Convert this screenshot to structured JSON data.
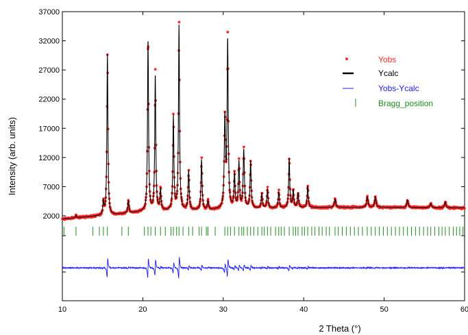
{
  "chart_data": {
    "type": "line",
    "title": "",
    "xlabel": "2 Theta (°)",
    "ylabel": "Intensity (arb. units)",
    "xlim": [
      10,
      60
    ],
    "ylim_top_panel": [
      0,
      37000
    ],
    "x_ticks": [
      "10",
      "20",
      "30",
      "40",
      "50",
      "60"
    ],
    "y_ticks": [
      "2000",
      "7000",
      "12000",
      "17000",
      "22000",
      "27000",
      "32000",
      "37000"
    ],
    "y_tick_values": [
      2000,
      7000,
      12000,
      17000,
      22000,
      27000,
      32000,
      37000
    ],
    "legend_position": "top-right",
    "series": [
      {
        "name": "Yobs",
        "style": "points",
        "color": "#ff2a2a"
      },
      {
        "name": "Ycalc",
        "style": "line",
        "color": "#000000"
      },
      {
        "name": "Yobs-Ycalc",
        "style": "line",
        "color": "#1a1aff"
      },
      {
        "name": "Bragg_position",
        "style": "ticks",
        "color": "#1e8c1e"
      }
    ],
    "background": {
      "points": [
        [
          10,
          1450
        ],
        [
          12,
          1700
        ],
        [
          14,
          1900
        ],
        [
          16,
          2100
        ],
        [
          20,
          2700
        ],
        [
          24,
          2900
        ],
        [
          28,
          3000
        ],
        [
          32,
          3200
        ],
        [
          36,
          3300
        ],
        [
          40,
          3400
        ],
        [
          45,
          3450
        ],
        [
          50,
          3450
        ],
        [
          55,
          3400
        ],
        [
          60,
          3350
        ]
      ]
    },
    "peaks": [
      {
        "x": 11.7,
        "y": 400,
        "w": 0.07
      },
      {
        "x": 15.1,
        "y": 2200,
        "w": 0.08
      },
      {
        "x": 15.6,
        "y": 27600,
        "w": 0.075
      },
      {
        "x": 18.2,
        "y": 2200,
        "w": 0.08
      },
      {
        "x": 20.65,
        "y": 29400,
        "w": 0.075
      },
      {
        "x": 21.55,
        "y": 23300,
        "w": 0.075
      },
      {
        "x": 22.2,
        "y": 3600,
        "w": 0.08
      },
      {
        "x": 23.8,
        "y": 16000,
        "w": 0.075
      },
      {
        "x": 24.5,
        "y": 31600,
        "w": 0.075
      },
      {
        "x": 25.7,
        "y": 6700,
        "w": 0.08
      },
      {
        "x": 27.3,
        "y": 8600,
        "w": 0.08
      },
      {
        "x": 28.1,
        "y": 1500,
        "w": 0.08
      },
      {
        "x": 30.2,
        "y": 15300,
        "w": 0.09
      },
      {
        "x": 30.55,
        "y": 28600,
        "w": 0.08
      },
      {
        "x": 31.4,
        "y": 5800,
        "w": 0.08
      },
      {
        "x": 31.95,
        "y": 7900,
        "w": 0.08
      },
      {
        "x": 32.55,
        "y": 10000,
        "w": 0.09
      },
      {
        "x": 33.4,
        "y": 8100,
        "w": 0.08
      },
      {
        "x": 34.8,
        "y": 2600,
        "w": 0.08
      },
      {
        "x": 35.5,
        "y": 3300,
        "w": 0.08
      },
      {
        "x": 36.9,
        "y": 2800,
        "w": 0.08
      },
      {
        "x": 38.2,
        "y": 8400,
        "w": 0.08
      },
      {
        "x": 38.7,
        "y": 2900,
        "w": 0.08
      },
      {
        "x": 39.3,
        "y": 2500,
        "w": 0.08
      },
      {
        "x": 40.5,
        "y": 3700,
        "w": 0.08
      },
      {
        "x": 43.9,
        "y": 1400,
        "w": 0.1
      },
      {
        "x": 47.9,
        "y": 1800,
        "w": 0.1
      },
      {
        "x": 48.9,
        "y": 1800,
        "w": 0.1
      },
      {
        "x": 52.9,
        "y": 1300,
        "w": 0.1
      },
      {
        "x": 55.8,
        "y": 700,
        "w": 0.1
      },
      {
        "x": 57.6,
        "y": 1000,
        "w": 0.1
      }
    ],
    "bragg_positions": [
      10.2,
      11.7,
      13.8,
      14.6,
      15.1,
      15.6,
      17.4,
      18.2,
      20.2,
      20.65,
      21.0,
      21.55,
      22.2,
      22.8,
      23.5,
      23.8,
      24.2,
      24.5,
      25.0,
      25.7,
      26.2,
      27.0,
      27.3,
      27.9,
      28.1,
      29.0,
      30.2,
      30.55,
      30.9,
      31.4,
      31.95,
      32.3,
      32.55,
      33.0,
      33.4,
      33.8,
      34.3,
      34.8,
      35.1,
      35.5,
      35.9,
      36.5,
      36.9,
      37.2,
      37.6,
      38.2,
      38.7,
      39.0,
      39.3,
      39.8,
      40.1,
      40.5,
      41.0,
      41.4,
      41.9,
      42.3,
      42.8,
      43.2,
      43.9,
      44.3,
      44.8,
      45.3,
      45.8,
      46.3,
      46.8,
      47.3,
      47.9,
      48.4,
      48.9,
      49.4,
      49.9,
      50.4,
      50.9,
      51.4,
      51.9,
      52.4,
      52.9,
      53.4,
      53.9,
      54.4,
      54.9,
      55.4,
      55.8,
      56.3,
      56.8,
      57.2,
      57.6,
      58.1,
      58.6,
      59.0,
      59.4,
      59.8
    ]
  }
}
